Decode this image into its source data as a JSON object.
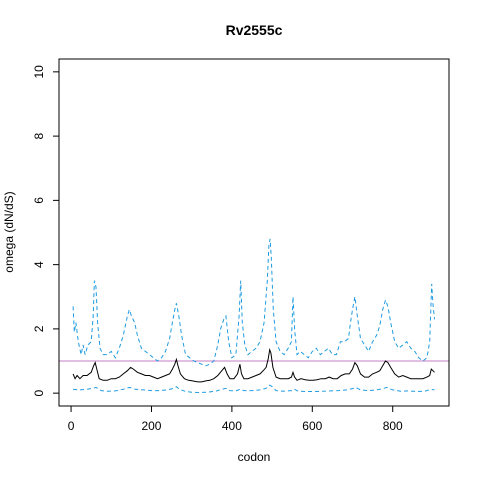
{
  "chart_data": {
    "type": "line",
    "title": "Rv2555c",
    "xlabel": "codon",
    "ylabel": "omega (dN/dS)",
    "xlim": [
      -30,
      940
    ],
    "ylim": [
      -0.4,
      10.4
    ],
    "xticks": [
      0,
      200,
      400,
      600,
      800
    ],
    "yticks": [
      0,
      2,
      4,
      6,
      8,
      10
    ],
    "reference_line": {
      "y": 1,
      "color": "#c77cc7"
    },
    "series": [
      {
        "role": "upper",
        "color": "#1f9be0",
        "dash": true,
        "points": [
          [
            5,
            2.7
          ],
          [
            8,
            1.9
          ],
          [
            12,
            2.2
          ],
          [
            18,
            1.6
          ],
          [
            25,
            1.2
          ],
          [
            30,
            1.5
          ],
          [
            35,
            1.2
          ],
          [
            42,
            1.5
          ],
          [
            50,
            1.6
          ],
          [
            55,
            2.4
          ],
          [
            58,
            3.5
          ],
          [
            62,
            3.3
          ],
          [
            66,
            2.2
          ],
          [
            72,
            1.4
          ],
          [
            80,
            1.2
          ],
          [
            90,
            1.2
          ],
          [
            100,
            1.3
          ],
          [
            110,
            1.1
          ],
          [
            120,
            1.4
          ],
          [
            130,
            1.8
          ],
          [
            140,
            2.4
          ],
          [
            145,
            2.6
          ],
          [
            150,
            2.4
          ],
          [
            158,
            2.2
          ],
          [
            165,
            1.8
          ],
          [
            175,
            1.4
          ],
          [
            185,
            1.3
          ],
          [
            195,
            1.2
          ],
          [
            205,
            1.1
          ],
          [
            215,
            1.0
          ],
          [
            225,
            1.1
          ],
          [
            235,
            1.3
          ],
          [
            245,
            1.7
          ],
          [
            252,
            2.2
          ],
          [
            258,
            2.6
          ],
          [
            262,
            2.8
          ],
          [
            268,
            2.4
          ],
          [
            275,
            1.8
          ],
          [
            285,
            1.2
          ],
          [
            295,
            1.1
          ],
          [
            305,
            1.0
          ],
          [
            315,
            0.95
          ],
          [
            325,
            0.9
          ],
          [
            335,
            0.85
          ],
          [
            345,
            0.9
          ],
          [
            355,
            1.0
          ],
          [
            365,
            1.5
          ],
          [
            372,
            2.0
          ],
          [
            380,
            2.3
          ],
          [
            385,
            2.4
          ],
          [
            392,
            1.6
          ],
          [
            400,
            1.1
          ],
          [
            410,
            1.2
          ],
          [
            418,
            2.4
          ],
          [
            422,
            3.5
          ],
          [
            426,
            2.2
          ],
          [
            432,
            1.5
          ],
          [
            440,
            1.2
          ],
          [
            450,
            1.3
          ],
          [
            460,
            1.4
          ],
          [
            470,
            1.6
          ],
          [
            480,
            2.2
          ],
          [
            488,
            3.5
          ],
          [
            492,
            4.6
          ],
          [
            495,
            4.8
          ],
          [
            498,
            4.2
          ],
          [
            503,
            2.6
          ],
          [
            510,
            1.6
          ],
          [
            520,
            1.3
          ],
          [
            530,
            1.2
          ],
          [
            540,
            1.4
          ],
          [
            548,
            1.6
          ],
          [
            552,
            3.0
          ],
          [
            556,
            2.0
          ],
          [
            562,
            1.2
          ],
          [
            570,
            1.3
          ],
          [
            580,
            1.2
          ],
          [
            590,
            1.1
          ],
          [
            600,
            1.3
          ],
          [
            610,
            1.4
          ],
          [
            620,
            1.2
          ],
          [
            630,
            1.3
          ],
          [
            640,
            1.4
          ],
          [
            650,
            1.2
          ],
          [
            660,
            1.2
          ],
          [
            670,
            1.6
          ],
          [
            680,
            1.6
          ],
          [
            690,
            1.7
          ],
          [
            695,
            2.2
          ],
          [
            700,
            2.6
          ],
          [
            706,
            3.0
          ],
          [
            712,
            2.4
          ],
          [
            720,
            1.7
          ],
          [
            730,
            1.5
          ],
          [
            740,
            1.3
          ],
          [
            750,
            1.6
          ],
          [
            760,
            1.8
          ],
          [
            768,
            2.1
          ],
          [
            775,
            2.6
          ],
          [
            782,
            2.9
          ],
          [
            788,
            2.7
          ],
          [
            795,
            2.2
          ],
          [
            805,
            1.6
          ],
          [
            815,
            1.4
          ],
          [
            825,
            1.5
          ],
          [
            835,
            1.6
          ],
          [
            845,
            1.4
          ],
          [
            855,
            1.3
          ],
          [
            865,
            1.1
          ],
          [
            875,
            1.0
          ],
          [
            885,
            1.1
          ],
          [
            892,
            1.6
          ],
          [
            897,
            3.4
          ],
          [
            900,
            2.8
          ],
          [
            904,
            2.3
          ]
        ]
      },
      {
        "role": "estimate",
        "color": "#000000",
        "dash": false,
        "points": [
          [
            5,
            0.6
          ],
          [
            10,
            0.45
          ],
          [
            15,
            0.55
          ],
          [
            22,
            0.45
          ],
          [
            30,
            0.55
          ],
          [
            40,
            0.55
          ],
          [
            50,
            0.65
          ],
          [
            56,
            0.85
          ],
          [
            60,
            0.95
          ],
          [
            64,
            0.75
          ],
          [
            70,
            0.45
          ],
          [
            80,
            0.4
          ],
          [
            90,
            0.4
          ],
          [
            100,
            0.45
          ],
          [
            110,
            0.45
          ],
          [
            120,
            0.5
          ],
          [
            130,
            0.6
          ],
          [
            140,
            0.7
          ],
          [
            148,
            0.8
          ],
          [
            155,
            0.75
          ],
          [
            165,
            0.65
          ],
          [
            175,
            0.6
          ],
          [
            185,
            0.55
          ],
          [
            195,
            0.55
          ],
          [
            205,
            0.5
          ],
          [
            215,
            0.45
          ],
          [
            225,
            0.5
          ],
          [
            235,
            0.55
          ],
          [
            245,
            0.6
          ],
          [
            252,
            0.75
          ],
          [
            258,
            0.9
          ],
          [
            262,
            1.05
          ],
          [
            266,
            0.85
          ],
          [
            272,
            0.6
          ],
          [
            282,
            0.45
          ],
          [
            292,
            0.4
          ],
          [
            302,
            0.38
          ],
          [
            315,
            0.35
          ],
          [
            325,
            0.35
          ],
          [
            335,
            0.38
          ],
          [
            345,
            0.4
          ],
          [
            355,
            0.45
          ],
          [
            365,
            0.55
          ],
          [
            375,
            0.7
          ],
          [
            382,
            0.8
          ],
          [
            388,
            0.6
          ],
          [
            395,
            0.45
          ],
          [
            405,
            0.45
          ],
          [
            414,
            0.6
          ],
          [
            420,
            0.9
          ],
          [
            424,
            0.6
          ],
          [
            430,
            0.45
          ],
          [
            440,
            0.45
          ],
          [
            450,
            0.5
          ],
          [
            460,
            0.55
          ],
          [
            470,
            0.6
          ],
          [
            478,
            0.7
          ],
          [
            485,
            0.8
          ],
          [
            490,
            1.05
          ],
          [
            494,
            1.35
          ],
          [
            497,
            1.25
          ],
          [
            502,
            0.8
          ],
          [
            510,
            0.5
          ],
          [
            520,
            0.45
          ],
          [
            530,
            0.45
          ],
          [
            540,
            0.45
          ],
          [
            548,
            0.5
          ],
          [
            552,
            0.65
          ],
          [
            556,
            0.5
          ],
          [
            562,
            0.4
          ],
          [
            572,
            0.45
          ],
          [
            582,
            0.42
          ],
          [
            592,
            0.4
          ],
          [
            602,
            0.4
          ],
          [
            612,
            0.42
          ],
          [
            622,
            0.45
          ],
          [
            632,
            0.45
          ],
          [
            642,
            0.5
          ],
          [
            652,
            0.45
          ],
          [
            662,
            0.45
          ],
          [
            672,
            0.55
          ],
          [
            682,
            0.6
          ],
          [
            692,
            0.6
          ],
          [
            700,
            0.75
          ],
          [
            706,
            0.95
          ],
          [
            712,
            0.85
          ],
          [
            720,
            0.6
          ],
          [
            730,
            0.5
          ],
          [
            740,
            0.5
          ],
          [
            750,
            0.6
          ],
          [
            760,
            0.65
          ],
          [
            768,
            0.7
          ],
          [
            775,
            0.85
          ],
          [
            782,
            1.0
          ],
          [
            788,
            0.95
          ],
          [
            795,
            0.8
          ],
          [
            805,
            0.6
          ],
          [
            815,
            0.5
          ],
          [
            825,
            0.55
          ],
          [
            835,
            0.5
          ],
          [
            845,
            0.45
          ],
          [
            855,
            0.45
          ],
          [
            865,
            0.45
          ],
          [
            875,
            0.45
          ],
          [
            885,
            0.5
          ],
          [
            892,
            0.55
          ],
          [
            896,
            0.75
          ],
          [
            900,
            0.7
          ],
          [
            904,
            0.65
          ]
        ]
      },
      {
        "role": "lower",
        "color": "#1f9be0",
        "dash": true,
        "points": [
          [
            5,
            0.12
          ],
          [
            20,
            0.1
          ],
          [
            40,
            0.12
          ],
          [
            55,
            0.15
          ],
          [
            62,
            0.18
          ],
          [
            75,
            0.08
          ],
          [
            90,
            0.06
          ],
          [
            110,
            0.07
          ],
          [
            130,
            0.12
          ],
          [
            145,
            0.18
          ],
          [
            160,
            0.12
          ],
          [
            180,
            0.1
          ],
          [
            200,
            0.08
          ],
          [
            220,
            0.08
          ],
          [
            240,
            0.1
          ],
          [
            255,
            0.15
          ],
          [
            262,
            0.2
          ],
          [
            270,
            0.12
          ],
          [
            285,
            0.05
          ],
          [
            300,
            0.03
          ],
          [
            320,
            0.02
          ],
          [
            340,
            0.03
          ],
          [
            360,
            0.06
          ],
          [
            375,
            0.12
          ],
          [
            385,
            0.15
          ],
          [
            395,
            0.08
          ],
          [
            410,
            0.07
          ],
          [
            420,
            0.12
          ],
          [
            430,
            0.08
          ],
          [
            450,
            0.08
          ],
          [
            470,
            0.1
          ],
          [
            485,
            0.15
          ],
          [
            494,
            0.25
          ],
          [
            500,
            0.2
          ],
          [
            510,
            0.08
          ],
          [
            530,
            0.06
          ],
          [
            550,
            0.08
          ],
          [
            556,
            0.12
          ],
          [
            565,
            0.06
          ],
          [
            585,
            0.05
          ],
          [
            605,
            0.05
          ],
          [
            625,
            0.06
          ],
          [
            645,
            0.07
          ],
          [
            665,
            0.08
          ],
          [
            685,
            0.1
          ],
          [
            700,
            0.14
          ],
          [
            708,
            0.18
          ],
          [
            720,
            0.1
          ],
          [
            740,
            0.08
          ],
          [
            760,
            0.1
          ],
          [
            778,
            0.15
          ],
          [
            785,
            0.18
          ],
          [
            800,
            0.1
          ],
          [
            820,
            0.06
          ],
          [
            840,
            0.07
          ],
          [
            860,
            0.05
          ],
          [
            880,
            0.06
          ],
          [
            895,
            0.12
          ],
          [
            904,
            0.1
          ]
        ]
      }
    ]
  }
}
